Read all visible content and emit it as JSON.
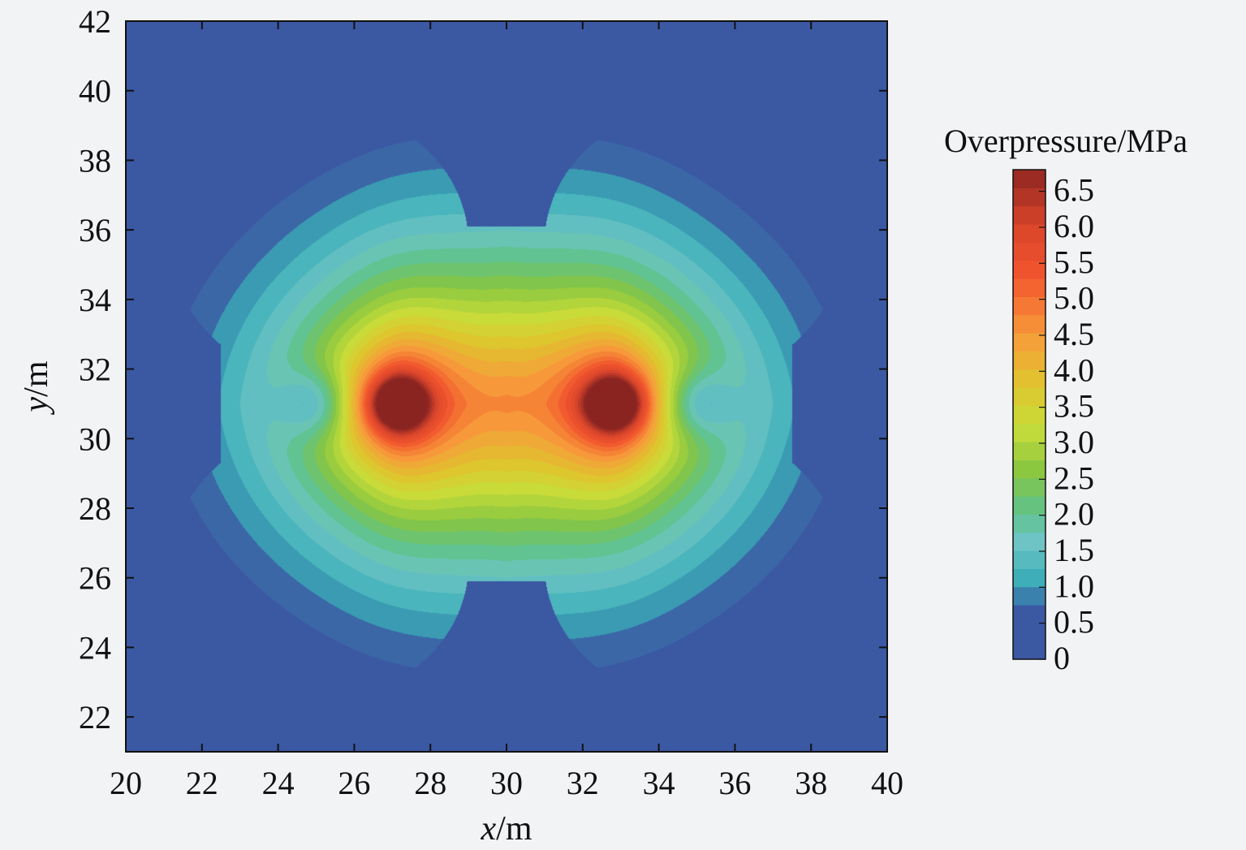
{
  "chart_data": {
    "type": "heatmap",
    "title": "",
    "xlabel": {
      "var": "x",
      "unit": "/m"
    },
    "ylabel": {
      "var": "y",
      "unit": "/m"
    },
    "xlim": [
      20,
      40
    ],
    "ylim": [
      21,
      42
    ],
    "xticks": [
      "20",
      "22",
      "24",
      "26",
      "28",
      "30",
      "32",
      "34",
      "36",
      "38",
      "40"
    ],
    "yticks": [
      "22",
      "24",
      "26",
      "28",
      "30",
      "32",
      "34",
      "36",
      "38",
      "40",
      "42"
    ],
    "colorbar": {
      "title": "Overpressure/MPa",
      "labels": [
        "0",
        "0.5",
        "1.0",
        "1.5",
        "2.0",
        "2.5",
        "3.0",
        "3.5",
        "4.0",
        "4.5",
        "5.0",
        "5.5",
        "6.0",
        "6.5"
      ],
      "range": [
        0,
        6.8
      ],
      "level_step": 0.25,
      "colors": [
        "#3b58a3",
        "#3aaeb8",
        "#6fc4c4",
        "#5ec38b",
        "#88c540",
        "#c7dd3a",
        "#e0c42e",
        "#f79a3a",
        "#f2552e",
        "#d9452b",
        "#c0322c",
        "#8a2421"
      ]
    },
    "field": {
      "grid": "x 20–40, y 21–42",
      "charges": [
        {
          "x": 27.2,
          "y": 31.0
        },
        {
          "x": 32.8,
          "y": 31.0
        }
      ],
      "low_pressure_spots": [
        {
          "x": 25.0,
          "y": 31.0
        },
        {
          "x": 35.0,
          "y": 31.0
        }
      ],
      "peak_overpressure": 6.8,
      "outer_contour_extent": {
        "x": [
          21.2,
          38.8
        ],
        "y": [
          22.5,
          39.5
        ]
      }
    }
  }
}
